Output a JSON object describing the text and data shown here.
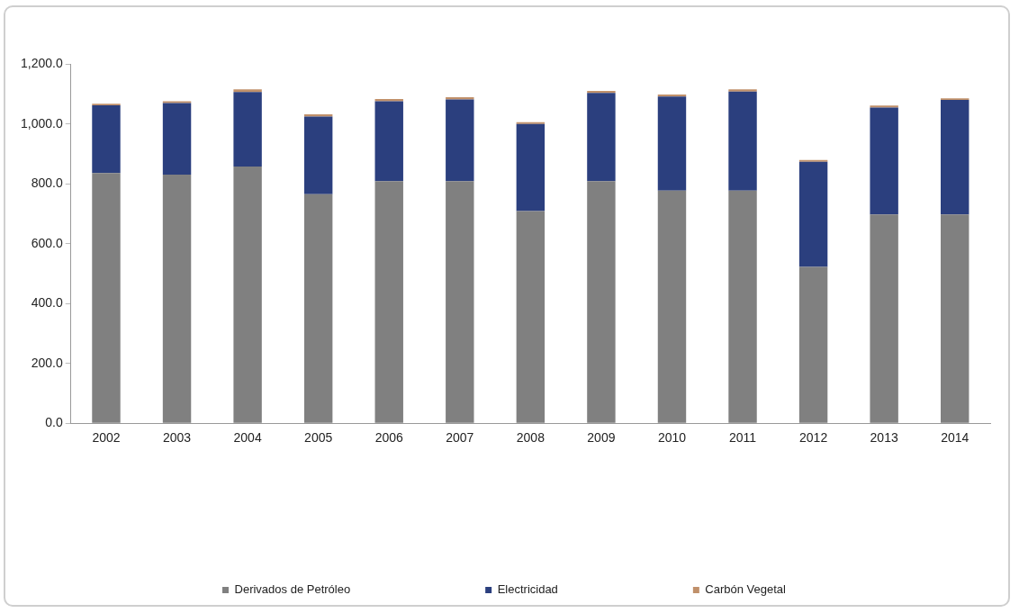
{
  "chart_data": {
    "type": "bar",
    "stacked": true,
    "categories": [
      "2002",
      "2003",
      "2004",
      "2005",
      "2006",
      "2007",
      "2008",
      "2009",
      "2010",
      "2011",
      "2012",
      "2013",
      "2014"
    ],
    "series": [
      {
        "name": "Derivados de Petróleo",
        "color": "#808080",
        "values": [
          836,
          831,
          858,
          766,
          809,
          809,
          709,
          809,
          778,
          778,
          523,
          698,
          698
        ]
      },
      {
        "name": "Electricidad",
        "color": "#2b3f7e",
        "values": [
          227,
          239,
          249,
          259,
          267,
          273,
          291,
          295,
          314,
          331,
          351,
          357,
          383
        ]
      },
      {
        "name": "Carbón Vegetal",
        "color": "#c0906a",
        "values": [
          5,
          6,
          9,
          8,
          8,
          8,
          6,
          7,
          7,
          7,
          6,
          7,
          5
        ]
      }
    ],
    "ylim": [
      0,
      1200
    ],
    "yticks": [
      {
        "value": 0,
        "label": "0.0"
      },
      {
        "value": 200,
        "label": "200.0"
      },
      {
        "value": 400,
        "label": "400.0"
      },
      {
        "value": 600,
        "label": "600.0"
      },
      {
        "value": 800,
        "label": "800.0"
      },
      {
        "value": 1000,
        "label": "1,000.0"
      },
      {
        "value": 1200,
        "label": "1,200.0"
      }
    ],
    "grid": false,
    "legend": "bottom"
  }
}
